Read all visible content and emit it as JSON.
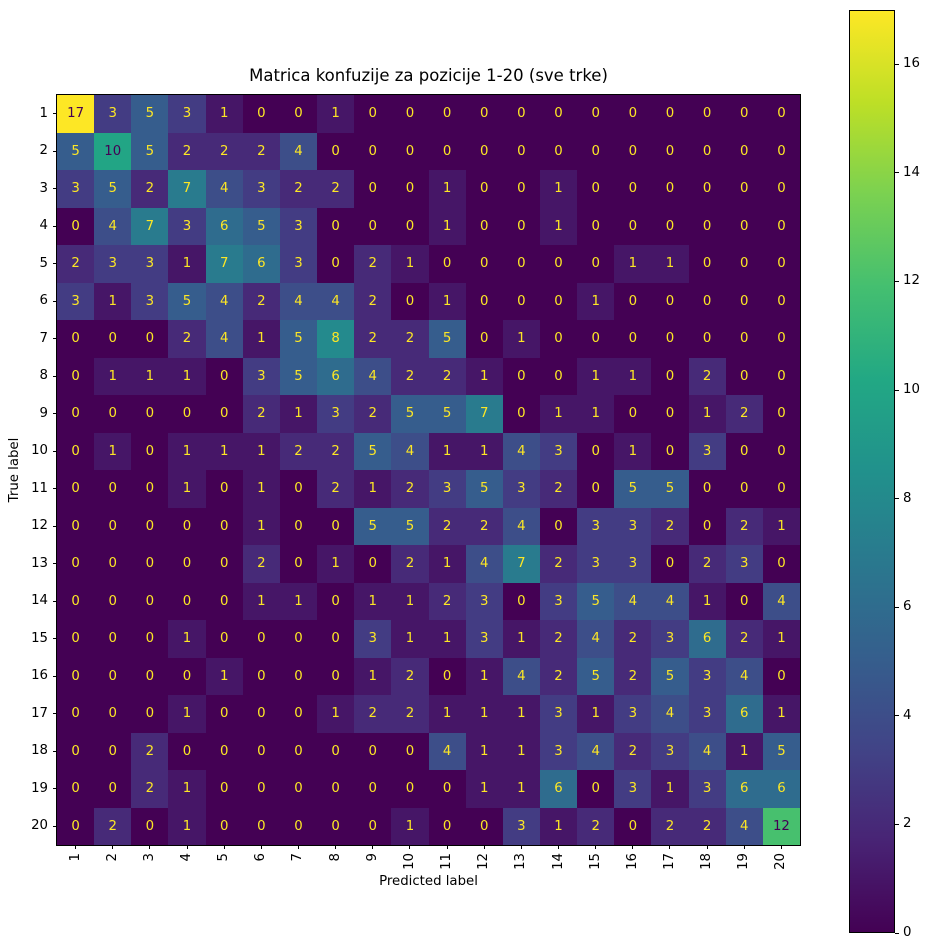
{
  "chart_data": {
    "type": "heatmap",
    "title": "Matrica konfuzije za pozicije 1-20 (sve trke)",
    "xlabel": "Predicted label",
    "ylabel": "True label",
    "x_ticklabels": [
      "1",
      "2",
      "3",
      "4",
      "5",
      "6",
      "7",
      "8",
      "9",
      "10",
      "11",
      "12",
      "13",
      "14",
      "15",
      "16",
      "17",
      "18",
      "19",
      "20"
    ],
    "y_ticklabels": [
      "1",
      "2",
      "3",
      "4",
      "5",
      "6",
      "7",
      "8",
      "9",
      "10",
      "11",
      "12",
      "13",
      "14",
      "15",
      "16",
      "17",
      "18",
      "19",
      "20"
    ],
    "vmin": 0,
    "vmax": 17,
    "colormap": "viridis",
    "colormap_stops": [
      "#440154",
      "#482475",
      "#414487",
      "#355f8d",
      "#2a788e",
      "#21918c",
      "#22a884",
      "#44bf70",
      "#7ad151",
      "#bddf26",
      "#fde725"
    ],
    "annotation_color_low": "#fde725",
    "annotation_color_high": "#440154",
    "annotation_threshold": 8.5,
    "colorbar_ticks": [
      0,
      2,
      4,
      6,
      8,
      10,
      12,
      14,
      16
    ],
    "legend_position": "right-colorbar",
    "grid": false,
    "matrix": [
      [
        17,
        3,
        5,
        3,
        1,
        0,
        0,
        1,
        0,
        0,
        0,
        0,
        0,
        0,
        0,
        0,
        0,
        0,
        0,
        0
      ],
      [
        5,
        10,
        5,
        2,
        2,
        2,
        4,
        0,
        0,
        0,
        0,
        0,
        0,
        0,
        0,
        0,
        0,
        0,
        0,
        0
      ],
      [
        3,
        5,
        2,
        7,
        4,
        3,
        2,
        2,
        0,
        0,
        1,
        0,
        0,
        1,
        0,
        0,
        0,
        0,
        0,
        0
      ],
      [
        0,
        4,
        7,
        3,
        6,
        5,
        3,
        0,
        0,
        0,
        1,
        0,
        0,
        1,
        0,
        0,
        0,
        0,
        0,
        0
      ],
      [
        2,
        3,
        3,
        1,
        7,
        6,
        3,
        0,
        2,
        1,
        0,
        0,
        0,
        0,
        0,
        1,
        1,
        0,
        0,
        0
      ],
      [
        3,
        1,
        3,
        5,
        4,
        2,
        4,
        4,
        2,
        0,
        1,
        0,
        0,
        0,
        1,
        0,
        0,
        0,
        0,
        0
      ],
      [
        0,
        0,
        0,
        2,
        4,
        1,
        5,
        8,
        2,
        2,
        5,
        0,
        1,
        0,
        0,
        0,
        0,
        0,
        0,
        0
      ],
      [
        0,
        1,
        1,
        1,
        0,
        3,
        5,
        6,
        4,
        2,
        2,
        1,
        0,
        0,
        1,
        1,
        0,
        2,
        0,
        0
      ],
      [
        0,
        0,
        0,
        0,
        0,
        2,
        1,
        3,
        2,
        5,
        5,
        7,
        0,
        1,
        1,
        0,
        0,
        1,
        2,
        0
      ],
      [
        0,
        1,
        0,
        1,
        1,
        1,
        2,
        2,
        5,
        4,
        1,
        1,
        4,
        3,
        0,
        1,
        0,
        3,
        0,
        0
      ],
      [
        0,
        0,
        0,
        1,
        0,
        1,
        0,
        2,
        1,
        2,
        3,
        5,
        3,
        2,
        0,
        5,
        5,
        0,
        0,
        0
      ],
      [
        0,
        0,
        0,
        0,
        0,
        1,
        0,
        0,
        5,
        5,
        2,
        2,
        4,
        0,
        3,
        3,
        2,
        0,
        2,
        1
      ],
      [
        0,
        0,
        0,
        0,
        0,
        2,
        0,
        1,
        0,
        2,
        1,
        4,
        7,
        2,
        3,
        3,
        0,
        2,
        3,
        0
      ],
      [
        0,
        0,
        0,
        0,
        0,
        1,
        1,
        0,
        1,
        1,
        2,
        3,
        0,
        3,
        5,
        4,
        4,
        1,
        0,
        4
      ],
      [
        0,
        0,
        0,
        1,
        0,
        0,
        0,
        0,
        3,
        1,
        1,
        3,
        1,
        2,
        4,
        2,
        3,
        6,
        2,
        1
      ],
      [
        0,
        0,
        0,
        0,
        1,
        0,
        0,
        0,
        1,
        2,
        0,
        1,
        4,
        2,
        5,
        2,
        5,
        3,
        4,
        0
      ],
      [
        0,
        0,
        0,
        1,
        0,
        0,
        0,
        1,
        2,
        2,
        1,
        1,
        1,
        3,
        1,
        3,
        4,
        3,
        6,
        1
      ],
      [
        0,
        0,
        2,
        0,
        0,
        0,
        0,
        0,
        0,
        0,
        4,
        1,
        1,
        3,
        4,
        2,
        3,
        4,
        1,
        5
      ],
      [
        0,
        0,
        2,
        1,
        0,
        0,
        0,
        0,
        0,
        0,
        0,
        1,
        1,
        6,
        0,
        3,
        1,
        3,
        6,
        6
      ],
      [
        0,
        2,
        0,
        1,
        0,
        0,
        0,
        0,
        0,
        1,
        0,
        0,
        3,
        1,
        2,
        0,
        2,
        2,
        4,
        12
      ]
    ]
  }
}
